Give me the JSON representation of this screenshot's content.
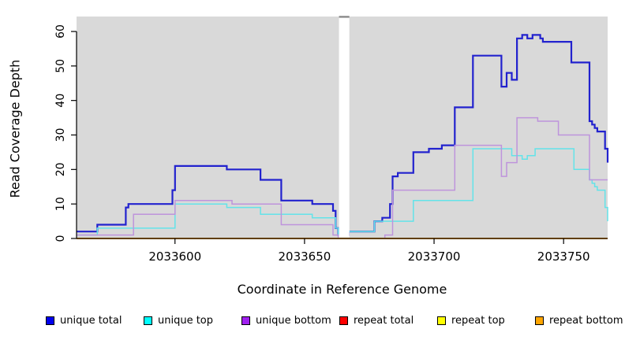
{
  "figure": {
    "y_axis_title": "Read Coverage Depth",
    "x_axis_title": "Coordinate in Reference Genome"
  },
  "chart_data": {
    "type": "line",
    "subtype": "step-coverage",
    "title": "",
    "xlabel": "Coordinate in Reference Genome",
    "ylabel": "Read Coverage Depth",
    "xlim": [
      2033562,
      2033767
    ],
    "ylim": [
      0,
      64
    ],
    "x_ticks": [
      2033600,
      2033650,
      2033700,
      2033750
    ],
    "x_tick_labels": [
      "2033600",
      "2033650",
      "2033700",
      "2033750"
    ],
    "y_ticks": [
      0,
      10,
      20,
      30,
      40,
      50,
      60
    ],
    "y_tick_labels": [
      "0",
      "10",
      "20",
      "30",
      "40",
      "50",
      "60"
    ],
    "grid": false,
    "plot_background": "#D9D9D9",
    "gap_region": {
      "x_start": 2033663.3,
      "x_end": 2033667.3,
      "fill": "#FFFFFF",
      "top_bar_color": "#8A8A8A"
    },
    "legend_position": "bottom",
    "series": [
      {
        "name": "unique total",
        "color": "#2222CE",
        "legend_color": "#0000EE",
        "line_width": 2.2,
        "points": [
          [
            2033562,
            2
          ],
          [
            2033570,
            4
          ],
          [
            2033581,
            9
          ],
          [
            2033582,
            10
          ],
          [
            2033599,
            14
          ],
          [
            2033600,
            21
          ],
          [
            2033620,
            20
          ],
          [
            2033633,
            17
          ],
          [
            2033641,
            11
          ],
          [
            2033653,
            10
          ],
          [
            2033661,
            8
          ],
          [
            2033662,
            3
          ],
          [
            2033663,
            1
          ],
          [
            2033667,
            2
          ],
          [
            2033677,
            5
          ],
          [
            2033680,
            6
          ],
          [
            2033683,
            10
          ],
          [
            2033684,
            18
          ],
          [
            2033686,
            19
          ],
          [
            2033692,
            25
          ],
          [
            2033698,
            26
          ],
          [
            2033703,
            27
          ],
          [
            2033708,
            38
          ],
          [
            2033715,
            53
          ],
          [
            2033726,
            44
          ],
          [
            2033728,
            48
          ],
          [
            2033730,
            46
          ],
          [
            2033732,
            58
          ],
          [
            2033734,
            59
          ],
          [
            2033736,
            58
          ],
          [
            2033738,
            59
          ],
          [
            2033741,
            58
          ],
          [
            2033742,
            57
          ],
          [
            2033753,
            51
          ],
          [
            2033760,
            34
          ],
          [
            2033761,
            33
          ],
          [
            2033762,
            32
          ],
          [
            2033763,
            31
          ],
          [
            2033766,
            26
          ],
          [
            2033767,
            22
          ]
        ]
      },
      {
        "name": "unique top",
        "color": "#63E3E9",
        "legend_color": "#00FFFF",
        "line_width": 1.5,
        "points": [
          [
            2033562,
            1
          ],
          [
            2033570,
            3
          ],
          [
            2033600,
            10
          ],
          [
            2033620,
            9
          ],
          [
            2033633,
            7
          ],
          [
            2033653,
            6
          ],
          [
            2033662,
            3
          ],
          [
            2033663,
            1
          ],
          [
            2033667,
            2
          ],
          [
            2033677,
            5
          ],
          [
            2033692,
            11
          ],
          [
            2033715,
            26
          ],
          [
            2033730,
            24
          ],
          [
            2033734,
            23
          ],
          [
            2033736,
            24
          ],
          [
            2033739,
            26
          ],
          [
            2033754,
            20
          ],
          [
            2033760,
            17
          ],
          [
            2033761,
            16
          ],
          [
            2033762,
            15
          ],
          [
            2033763,
            14
          ],
          [
            2033766,
            9
          ],
          [
            2033767,
            5
          ]
        ]
      },
      {
        "name": "unique bottom",
        "color": "#BE94DC",
        "legend_color": "#A020F0",
        "line_width": 1.5,
        "points": [
          [
            2033562,
            1
          ],
          [
            2033584,
            7
          ],
          [
            2033600,
            11
          ],
          [
            2033622,
            10
          ],
          [
            2033641,
            4
          ],
          [
            2033661,
            1
          ],
          [
            2033663,
            0
          ],
          [
            2033681,
            1
          ],
          [
            2033684,
            14
          ],
          [
            2033708,
            27
          ],
          [
            2033726,
            18
          ],
          [
            2033728,
            22
          ],
          [
            2033732,
            35
          ],
          [
            2033740,
            34
          ],
          [
            2033748,
            30
          ],
          [
            2033760,
            17
          ]
        ]
      },
      {
        "name": "repeat total",
        "color": "#FF0000",
        "legend_color": "#FF0000",
        "line_width": 1.5,
        "points": [
          [
            2033562,
            0
          ]
        ]
      },
      {
        "name": "repeat top",
        "color": "#FFFF00",
        "legend_color": "#FFFF00",
        "line_width": 1.5,
        "points": [
          [
            2033562,
            0
          ]
        ]
      },
      {
        "name": "repeat bottom",
        "color": "#FFA500",
        "legend_color": "#FFA500",
        "line_width": 2,
        "points": [
          [
            2033562,
            0
          ]
        ]
      }
    ]
  },
  "legend": {
    "items": [
      {
        "label": "unique total",
        "color": "#0000EE"
      },
      {
        "label": "unique top",
        "color": "#00FFFF"
      },
      {
        "label": "unique bottom",
        "color": "#A020F0"
      },
      {
        "label": "repeat total",
        "color": "#FF0000"
      },
      {
        "label": "repeat top",
        "color": "#FFFF00"
      },
      {
        "label": "repeat bottom",
        "color": "#FFA500"
      }
    ]
  }
}
